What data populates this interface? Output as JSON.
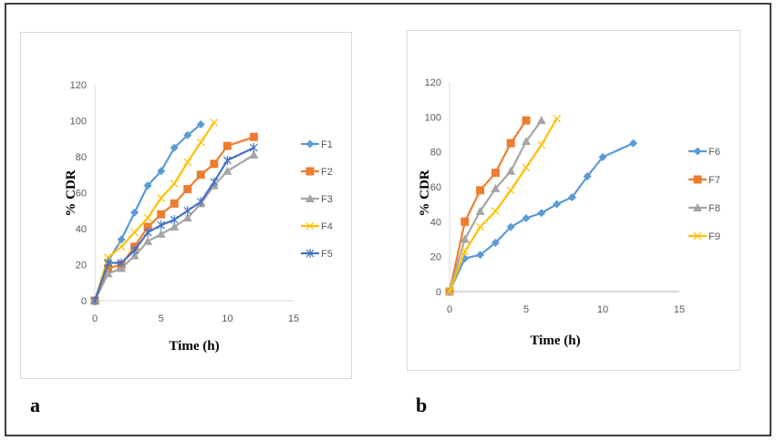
{
  "colors": {
    "F1": "#5B9BD5",
    "F2": "#ED7D31",
    "F3": "#A5A5A5",
    "F4": "#FFC000",
    "F5": "#4472C4",
    "F6": "#5B9BD5",
    "F7": "#ED7D31",
    "F8": "#A5A5A5",
    "F9": "#FFC000"
  },
  "chart_data": [
    {
      "type": "line",
      "panel_label": "a",
      "title": "",
      "xlabel": "Time (h)",
      "ylabel": "% CDR",
      "xlim": [
        0,
        15
      ],
      "ylim": [
        0,
        120
      ],
      "xticks": [
        "0",
        "5",
        "10",
        "15"
      ],
      "yticks": [
        "0",
        "20",
        "40",
        "60",
        "80",
        "100",
        "120"
      ],
      "legend": "right",
      "grid": false,
      "series": [
        {
          "name": "F1",
          "marker": "diamond",
          "x": [
            0,
            1,
            2,
            3,
            4,
            5,
            6,
            7,
            8
          ],
          "values": [
            0,
            22,
            34,
            49,
            64,
            72,
            85,
            92,
            98
          ]
        },
        {
          "name": "F2",
          "marker": "square",
          "x": [
            0,
            1,
            2,
            3,
            4,
            5,
            6,
            7,
            8,
            9,
            10,
            12
          ],
          "values": [
            0,
            18,
            20,
            30,
            41,
            48,
            54,
            62,
            70,
            76,
            86,
            91
          ]
        },
        {
          "name": "F3",
          "marker": "triangle",
          "x": [
            0,
            1,
            2,
            3,
            4,
            5,
            6,
            7,
            8,
            9,
            10,
            12
          ],
          "values": [
            0,
            15,
            18,
            25,
            33,
            37,
            41,
            46,
            54,
            64,
            72,
            81
          ]
        },
        {
          "name": "F4",
          "marker": "x",
          "x": [
            0,
            1,
            2,
            3,
            4,
            5,
            6,
            7,
            8,
            9
          ],
          "values": [
            0,
            24,
            30,
            38,
            46,
            57,
            65,
            77,
            88,
            99
          ]
        },
        {
          "name": "F5",
          "marker": "asterisk",
          "x": [
            0,
            1,
            2,
            3,
            4,
            5,
            6,
            7,
            8,
            9,
            10,
            12
          ],
          "values": [
            0,
            21,
            21,
            28,
            38,
            42,
            45,
            50,
            55,
            66,
            78,
            85
          ]
        }
      ]
    },
    {
      "type": "line",
      "panel_label": "b",
      "title": "",
      "xlabel": "Time (h)",
      "ylabel": "% CDR",
      "xlim": [
        0,
        15
      ],
      "ylim": [
        0,
        120
      ],
      "xticks": [
        "0",
        "5",
        "10",
        "15"
      ],
      "yticks": [
        "0",
        "20",
        "40",
        "60",
        "80",
        "100",
        "120"
      ],
      "legend": "right",
      "grid": false,
      "series": [
        {
          "name": "F6",
          "marker": "diamond",
          "x": [
            0,
            1,
            2,
            3,
            4,
            5,
            6,
            7,
            8,
            9,
            10,
            12
          ],
          "values": [
            0,
            19,
            21,
            28,
            37,
            42,
            45,
            50,
            54,
            66,
            77,
            85
          ]
        },
        {
          "name": "F7",
          "marker": "square",
          "x": [
            0,
            1,
            2,
            3,
            4,
            5
          ],
          "values": [
            0,
            40,
            58,
            68,
            85,
            98
          ]
        },
        {
          "name": "F8",
          "marker": "triangle",
          "x": [
            0,
            1,
            2,
            3,
            4,
            5,
            6
          ],
          "values": [
            0,
            30,
            46,
            59,
            69,
            86,
            98
          ]
        },
        {
          "name": "F9",
          "marker": "x",
          "x": [
            0,
            1,
            2,
            3,
            4,
            5,
            6,
            7
          ],
          "values": [
            0,
            23,
            37,
            46,
            58,
            71,
            84,
            99
          ]
        }
      ]
    }
  ]
}
